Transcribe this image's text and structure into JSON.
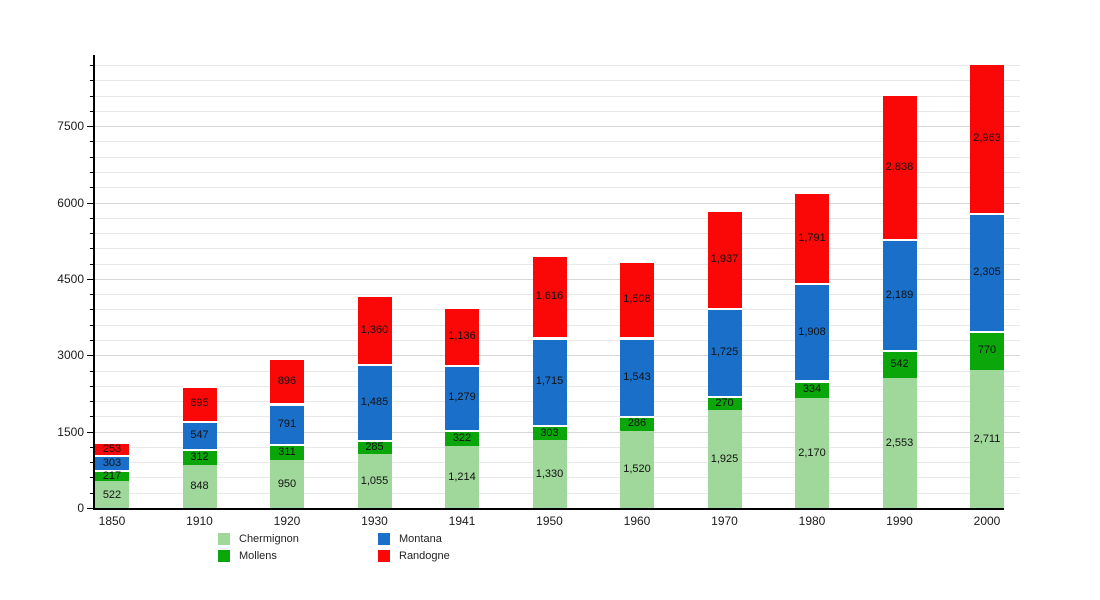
{
  "chart_data": {
    "type": "bar",
    "stacked": true,
    "title": "",
    "xlabel": "",
    "ylabel": "",
    "categories": [
      "1850",
      "1910",
      "1920",
      "1930",
      "1941",
      "1950",
      "1960",
      "1970",
      "1980",
      "1990",
      "2000"
    ],
    "series": [
      {
        "name": "Chermignon",
        "color": "#a0d89b",
        "values": [
          522,
          848,
          950,
          1055,
          1214,
          1330,
          1520,
          1925,
          2170,
          2553,
          2711
        ]
      },
      {
        "name": "Mollens",
        "color": "#0aa60a",
        "values": [
          217,
          312,
          311,
          285,
          322,
          303,
          286,
          270,
          334,
          542,
          770
        ]
      },
      {
        "name": "Montana",
        "color": "#1a6fc9",
        "values": [
          303,
          547,
          791,
          1485,
          1279,
          1715,
          1543,
          1725,
          1908,
          2189,
          2305
        ]
      },
      {
        "name": "Randogne",
        "color": "#fa0707",
        "values": [
          253,
          695,
          896,
          1360,
          1136,
          1616,
          1508,
          1937,
          1791,
          2838,
          2963
        ]
      }
    ],
    "ylim": [
      0,
      8900
    ],
    "y_major_ticks": [
      0,
      1500,
      3000,
      4500,
      6000,
      7500
    ],
    "y_minor_step": 300,
    "grid": true,
    "value_labels": true,
    "value_label_format": "thousands-comma",
    "legend_position": "bottom",
    "legend_columns": [
      [
        "Chermignon",
        "Mollens"
      ],
      [
        "Montana",
        "Randogne"
      ]
    ],
    "axis_color": "#000000"
  }
}
